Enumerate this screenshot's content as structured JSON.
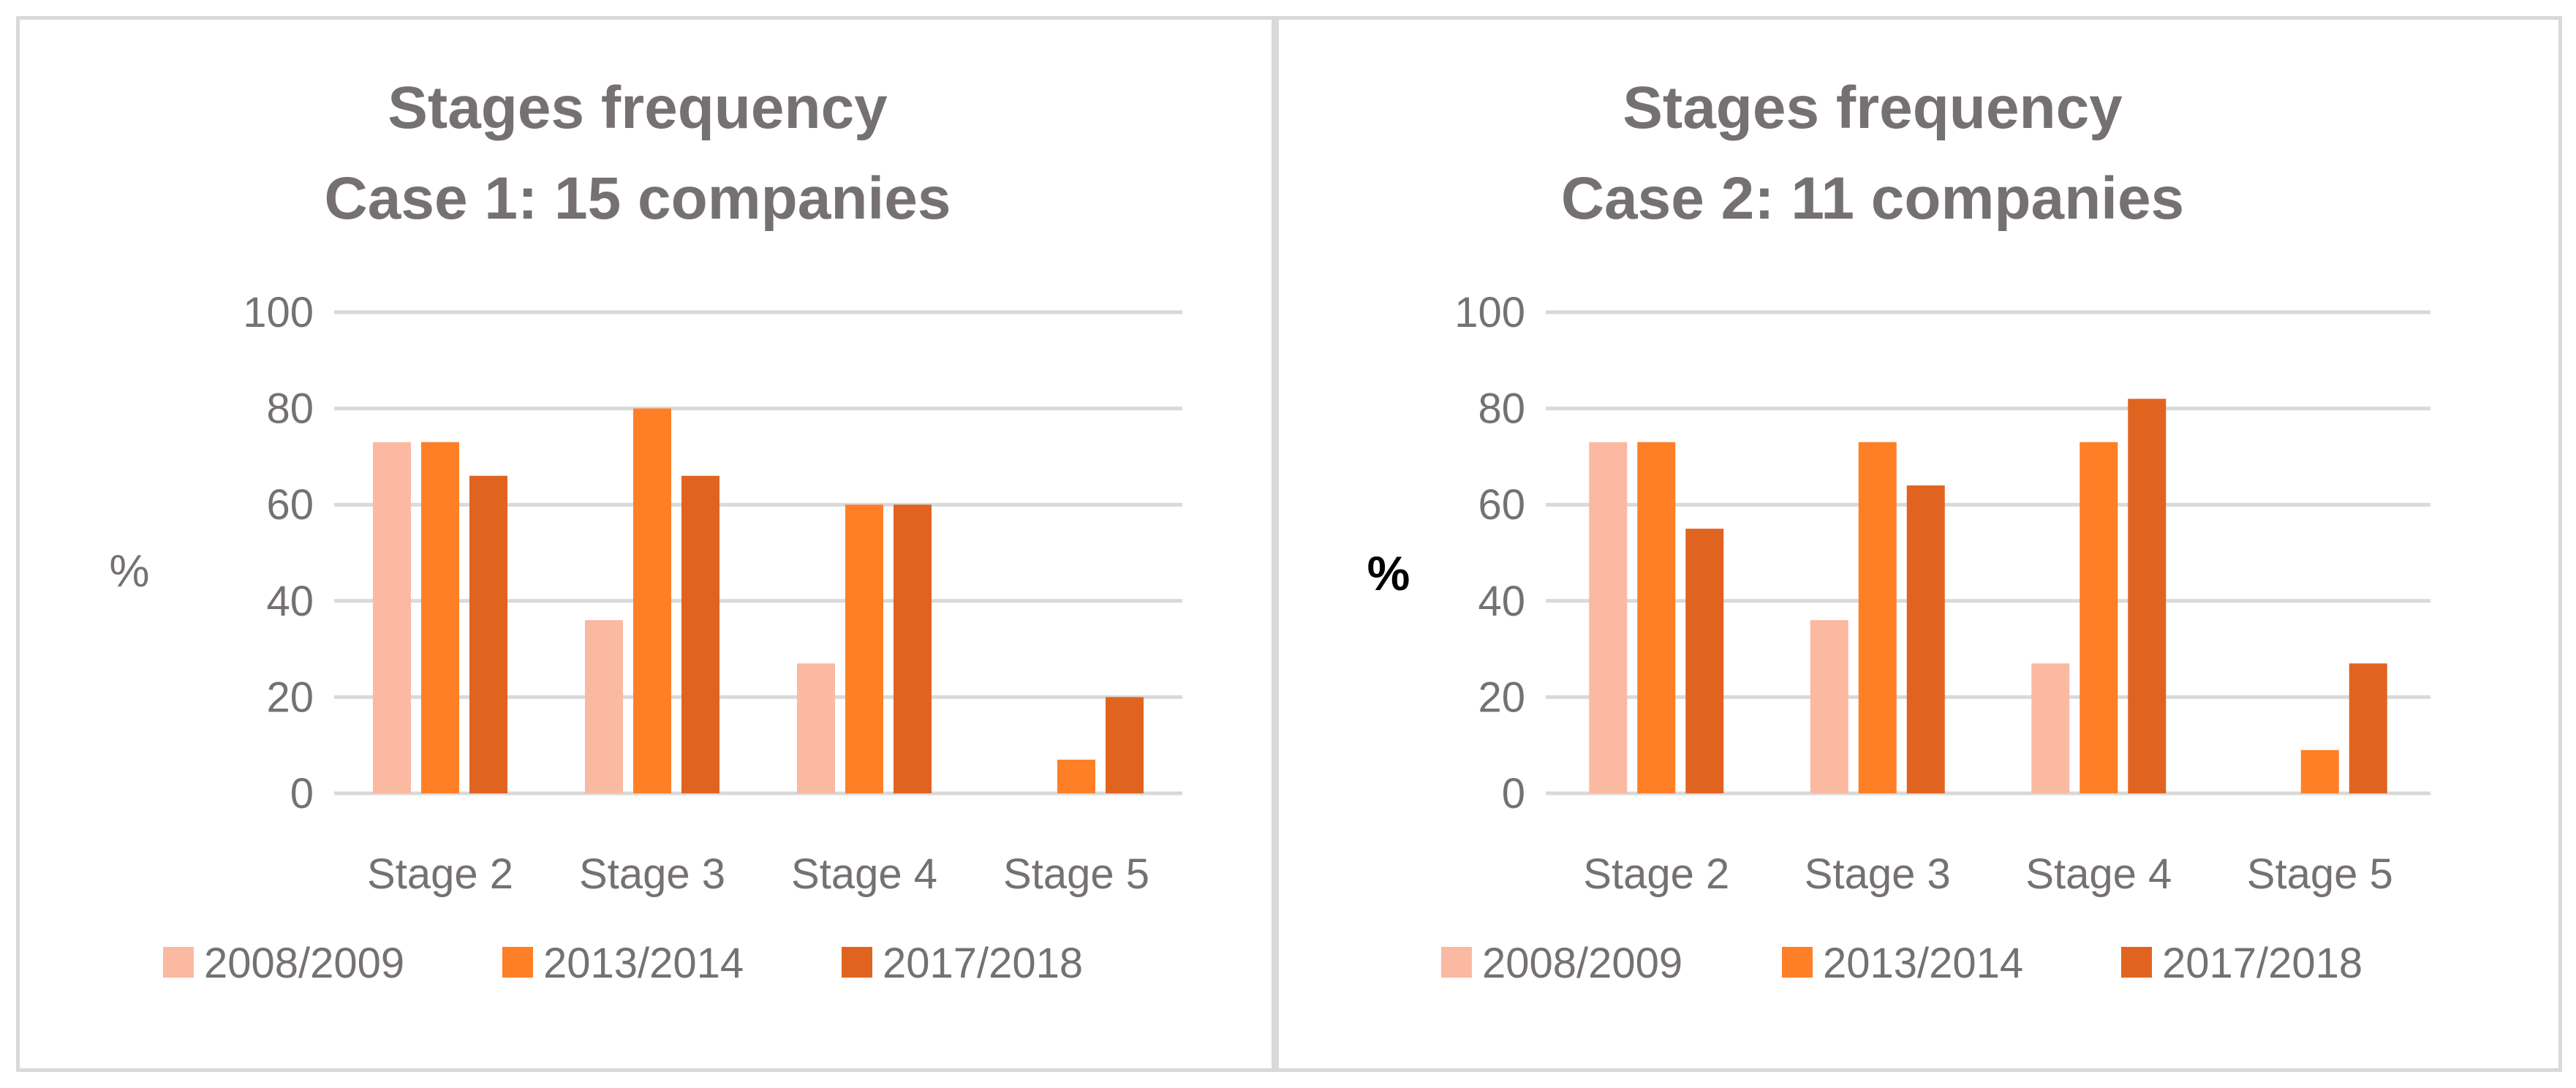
{
  "charts_meta": {
    "series_colors": [
      "#fbb9a2",
      "#ff7f27",
      "#e0641f"
    ],
    "text_color": "#767171",
    "gridline_color": "#d9d9d9"
  },
  "chart_data": [
    {
      "type": "bar",
      "title": [
        "Stages frequency",
        "Case 1: 15 companies"
      ],
      "xlabel": "",
      "ylabel": "%",
      "ylim": [
        0,
        100
      ],
      "yticks": [
        0,
        20,
        40,
        60,
        80,
        100
      ],
      "grid": true,
      "legend": "bottom",
      "categories": [
        "Stage 2",
        "Stage 3",
        "Stage 4",
        "Stage 5"
      ],
      "series": [
        {
          "name": "2008/2009",
          "values": [
            73,
            36,
            27,
            0
          ]
        },
        {
          "name": "2013/2014",
          "values": [
            73,
            80,
            60,
            7
          ]
        },
        {
          "name": "2017/2018",
          "values": [
            66,
            66,
            60,
            20
          ]
        }
      ]
    },
    {
      "type": "bar",
      "title": [
        "Stages frequency",
        "Case 2: 11 companies"
      ],
      "xlabel": "",
      "ylabel": "%",
      "ylim": [
        0,
        100
      ],
      "yticks": [
        0,
        20,
        40,
        60,
        80,
        100
      ],
      "grid": true,
      "legend": "bottom",
      "categories": [
        "Stage 2",
        "Stage 3",
        "Stage 4",
        "Stage 5"
      ],
      "series": [
        {
          "name": "2008/2009",
          "values": [
            73,
            36,
            27,
            0
          ]
        },
        {
          "name": "2013/2014",
          "values": [
            73,
            73,
            73,
            9
          ]
        },
        {
          "name": "2017/2018",
          "values": [
            55,
            64,
            82,
            27
          ]
        }
      ]
    }
  ]
}
